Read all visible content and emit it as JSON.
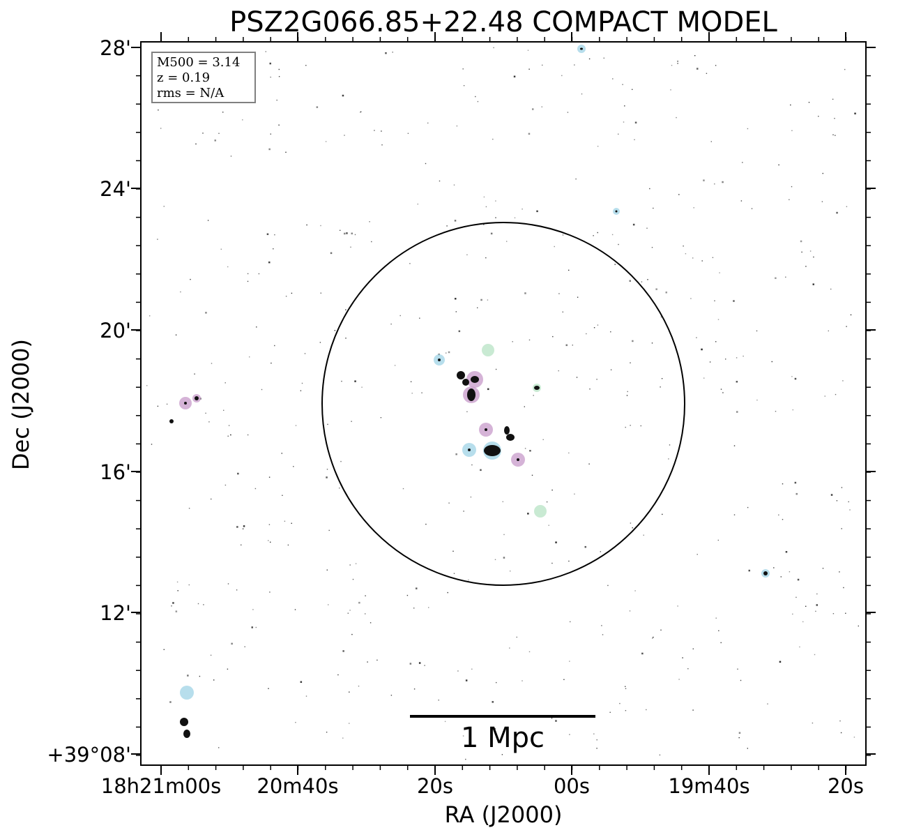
{
  "chart_data": {
    "type": "image",
    "title": "PSZ2G066.85+22.48 COMPACT MODEL",
    "xlabel": "RA (J2000)",
    "ylabel": "Dec (J2000)",
    "x_ticks": [
      "18h21m00s",
      "20m40s",
      "20s",
      "00s",
      "19m40s",
      "20s"
    ],
    "y_ticks": [
      "28'",
      "24'",
      "20'",
      "16'",
      "12'",
      "+39°08'"
    ],
    "annotation": {
      "m500": "M500 = 3.14",
      "z": "z = 0.19",
      "rms": "rms = N/A"
    },
    "scale_bar": {
      "label": "1 Mpc"
    },
    "colors": {
      "source_core": "#111111",
      "halo_blue": "#9fd3e6",
      "halo_pink": "#c79ac9",
      "halo_green": "#b7e3c4",
      "circle": "#000000"
    },
    "grid": false,
    "circle": {
      "description": "R500 aperture"
    }
  }
}
